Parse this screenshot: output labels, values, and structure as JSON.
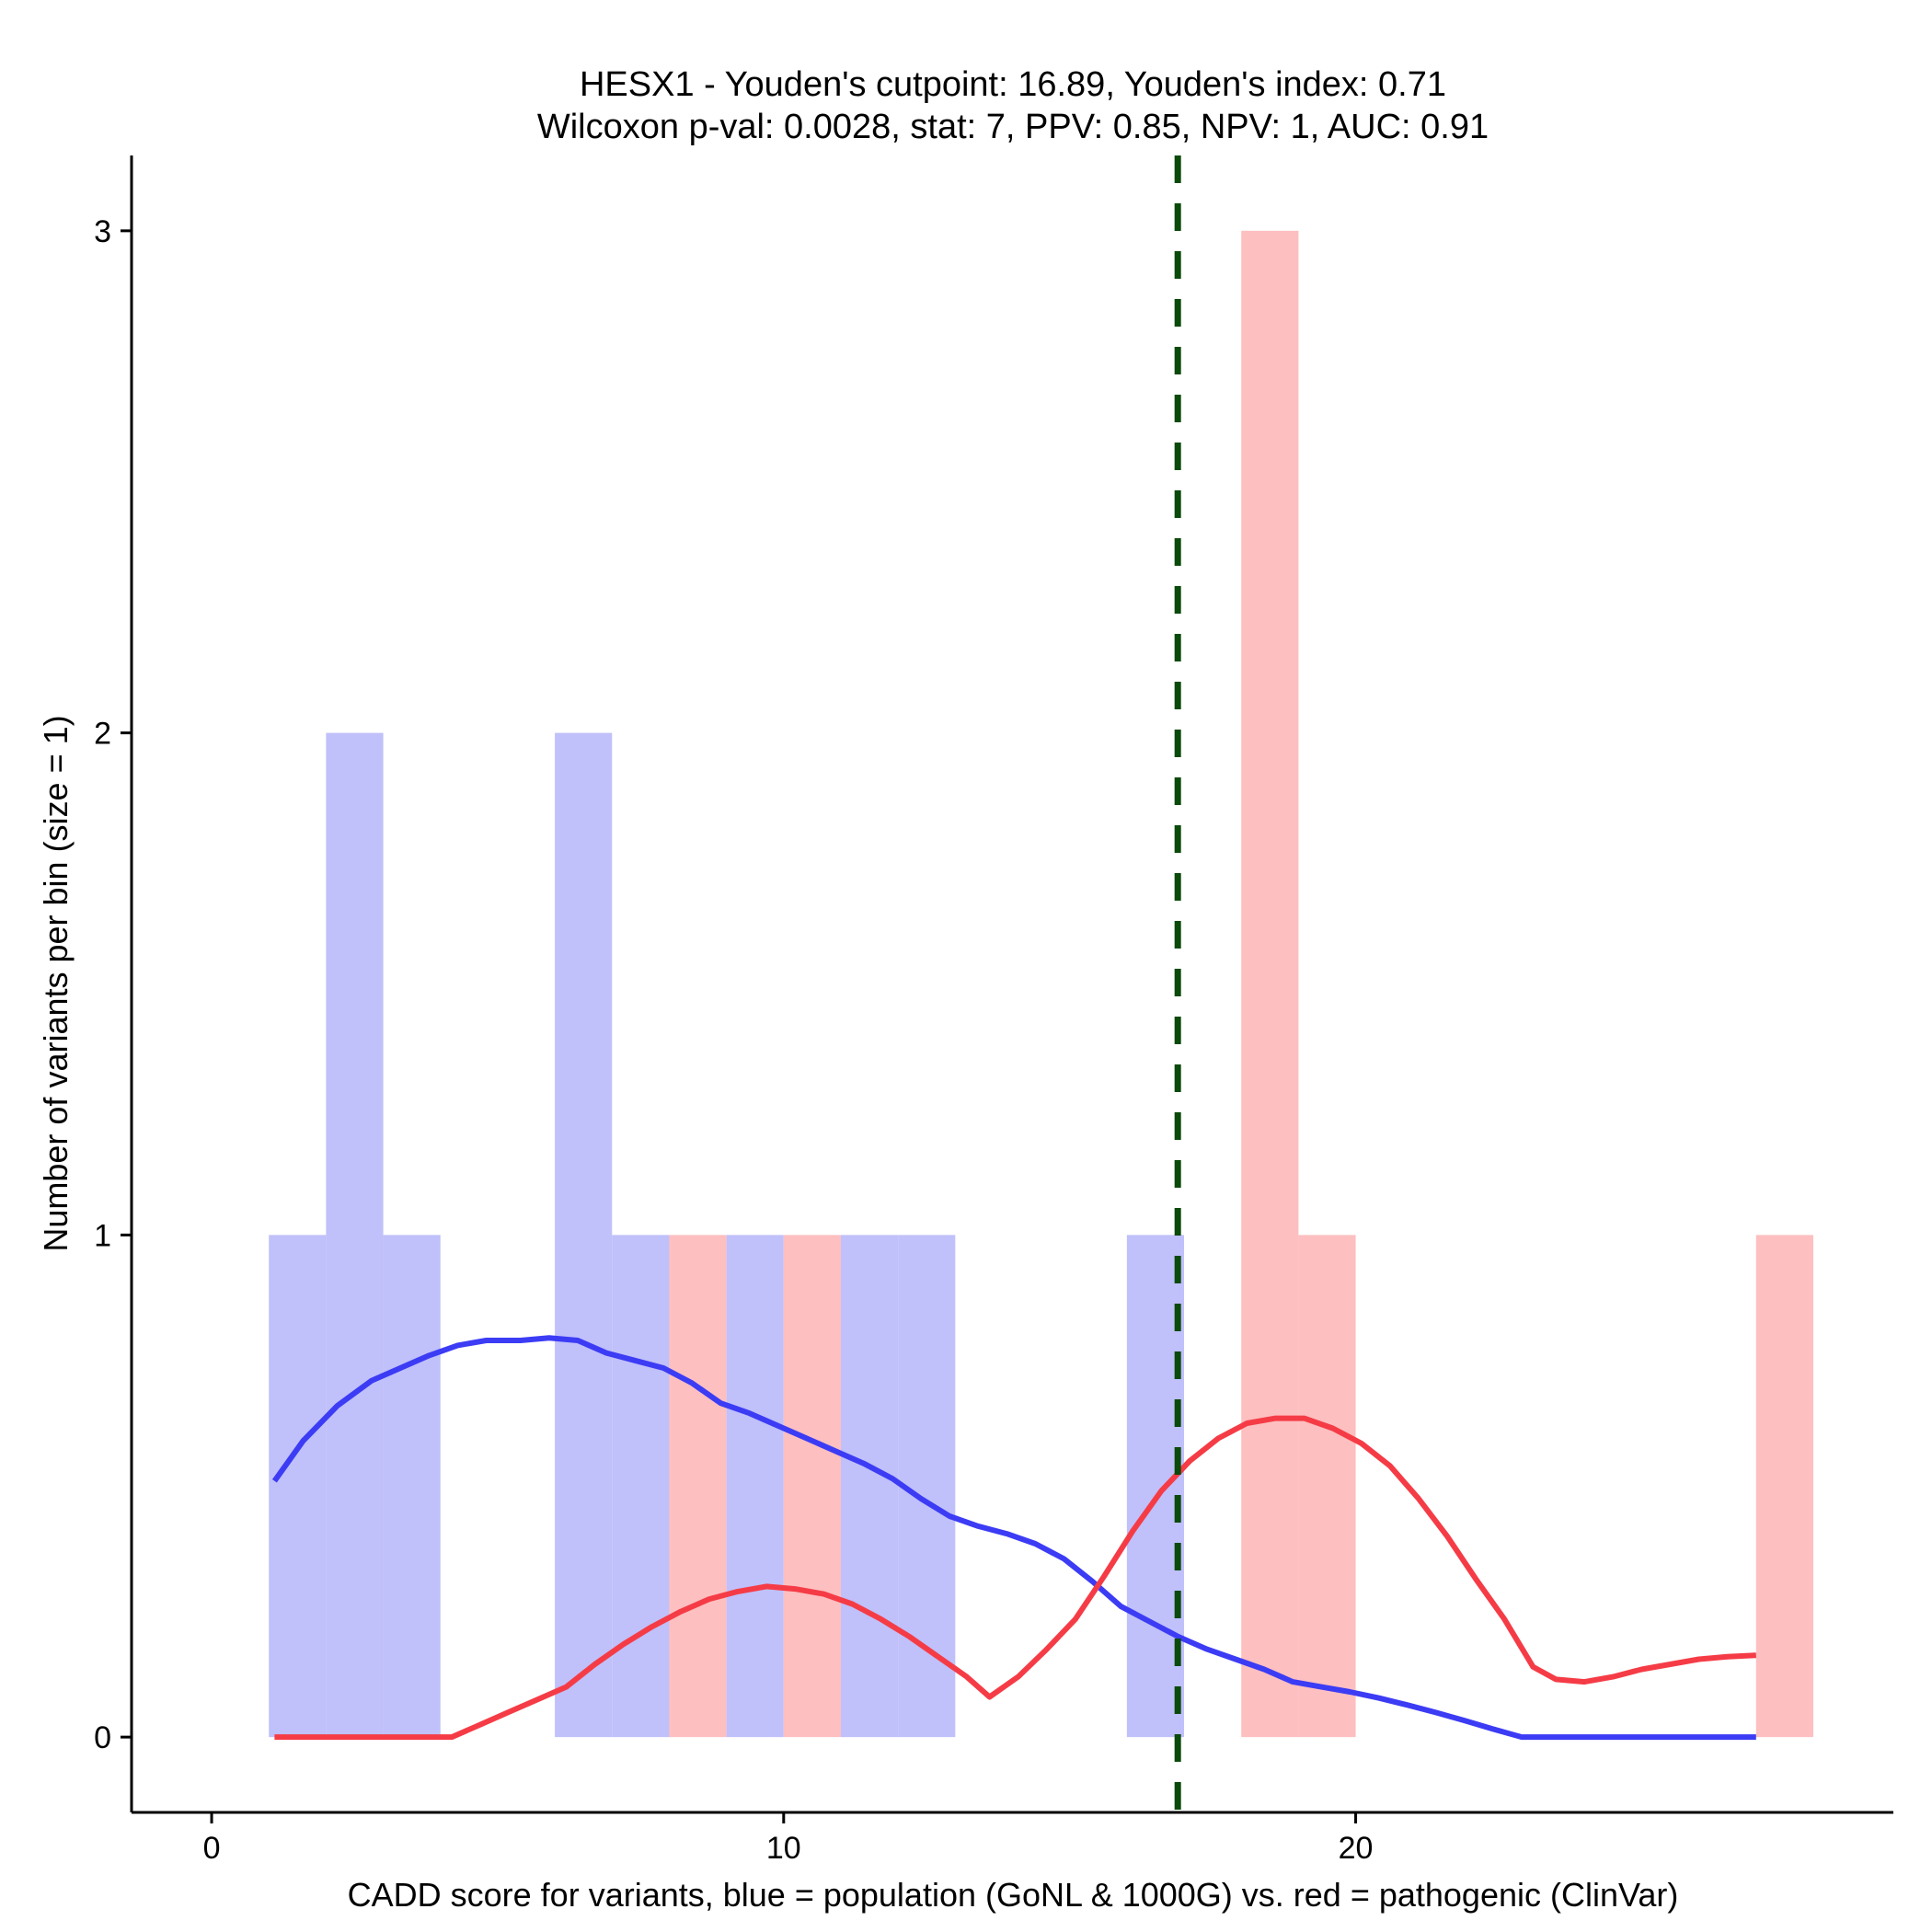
{
  "chart_data": {
    "type": "bar",
    "title_line1": "HESX1 - Youden's cutpoint: 16.89, Youden's index: 0.71",
    "title_line2": "Wilcoxon p-val: 0.0028, stat: 7, PPV: 0.85, NPV: 1, AUC: 0.91",
    "xlabel": "CADD score for variants, blue = population (GoNL & 1000G) vs. red = pathogenic (ClinVar)",
    "ylabel": "Number of variants per bin (size = 1)",
    "xlim": [
      -1.4,
      29.4
    ],
    "ylim": [
      -0.15,
      3.15
    ],
    "x_ticks": [
      0,
      10,
      20
    ],
    "y_ticks": [
      0,
      1,
      2,
      3
    ],
    "cutpoint": 16.89,
    "colors": {
      "population_bar": "#c0c0fa",
      "pathogenic_bar": "#fdbfc0",
      "population_line": "#3c3cf5",
      "pathogenic_line": "#f53c46",
      "cutpoint_line": "#0a4a0a"
    },
    "series": [
      {
        "name": "population",
        "bins": [
          {
            "start": 1,
            "end": 2,
            "count": 1
          },
          {
            "start": 2,
            "end": 3,
            "count": 2
          },
          {
            "start": 3,
            "end": 4,
            "count": 1
          },
          {
            "start": 6,
            "end": 7,
            "count": 2
          },
          {
            "start": 7,
            "end": 8,
            "count": 1
          },
          {
            "start": 9,
            "end": 10,
            "count": 1
          },
          {
            "start": 11,
            "end": 12,
            "count": 1
          },
          {
            "start": 12,
            "end": 13,
            "count": 1
          },
          {
            "start": 16,
            "end": 17,
            "count": 1
          }
        ],
        "density": [
          [
            1.1,
            0.51
          ],
          [
            1.6,
            0.59
          ],
          [
            2.2,
            0.66
          ],
          [
            2.8,
            0.71
          ],
          [
            3.3,
            0.735
          ],
          [
            3.8,
            0.76
          ],
          [
            4.3,
            0.78
          ],
          [
            4.8,
            0.79
          ],
          [
            5.4,
            0.79
          ],
          [
            5.9,
            0.795
          ],
          [
            6.4,
            0.79
          ],
          [
            6.9,
            0.765
          ],
          [
            7.4,
            0.75
          ],
          [
            7.9,
            0.735
          ],
          [
            8.4,
            0.705
          ],
          [
            8.9,
            0.665
          ],
          [
            9.4,
            0.645
          ],
          [
            9.9,
            0.62
          ],
          [
            10.4,
            0.595
          ],
          [
            10.9,
            0.57
          ],
          [
            11.4,
            0.545
          ],
          [
            11.9,
            0.515
          ],
          [
            12.4,
            0.475
          ],
          [
            12.9,
            0.44
          ],
          [
            13.4,
            0.42
          ],
          [
            13.9,
            0.405
          ],
          [
            14.4,
            0.385
          ],
          [
            14.9,
            0.355
          ],
          [
            15.4,
            0.31
          ],
          [
            15.9,
            0.26
          ],
          [
            16.4,
            0.23
          ],
          [
            16.9,
            0.2
          ],
          [
            17.4,
            0.175
          ],
          [
            17.9,
            0.155
          ],
          [
            18.4,
            0.135
          ],
          [
            18.9,
            0.11
          ],
          [
            19.4,
            0.1
          ],
          [
            19.9,
            0.09
          ],
          [
            20.4,
            0.078
          ],
          [
            20.9,
            0.064
          ],
          [
            21.4,
            0.049
          ],
          [
            21.9,
            0.033
          ],
          [
            22.4,
            0.016
          ],
          [
            22.9,
            0.0
          ],
          [
            23.5,
            0.0
          ],
          [
            25,
            0.0
          ],
          [
            27,
            0.0
          ]
        ]
      },
      {
        "name": "pathogenic",
        "bins": [
          {
            "start": 8,
            "end": 9,
            "count": 1
          },
          {
            "start": 10,
            "end": 11,
            "count": 1
          },
          {
            "start": 18,
            "end": 19,
            "count": 3
          },
          {
            "start": 19,
            "end": 20,
            "count": 1
          },
          {
            "start": 27,
            "end": 28,
            "count": 1
          }
        ],
        "density": [
          [
            1.1,
            0.0
          ],
          [
            2.0,
            0.0
          ],
          [
            3.0,
            0.0
          ],
          [
            4.2,
            0.0
          ],
          [
            4.7,
            0.025
          ],
          [
            5.2,
            0.05
          ],
          [
            5.7,
            0.075
          ],
          [
            6.2,
            0.1
          ],
          [
            6.7,
            0.145
          ],
          [
            7.2,
            0.185
          ],
          [
            7.7,
            0.22
          ],
          [
            8.2,
            0.25
          ],
          [
            8.7,
            0.275
          ],
          [
            9.2,
            0.29
          ],
          [
            9.7,
            0.3
          ],
          [
            10.2,
            0.295
          ],
          [
            10.7,
            0.285
          ],
          [
            11.2,
            0.265
          ],
          [
            11.7,
            0.235
          ],
          [
            12.2,
            0.2
          ],
          [
            12.7,
            0.16
          ],
          [
            13.2,
            0.12
          ],
          [
            13.6,
            0.08
          ],
          [
            14.1,
            0.12
          ],
          [
            14.6,
            0.175
          ],
          [
            15.1,
            0.235
          ],
          [
            15.6,
            0.32
          ],
          [
            16.1,
            0.41
          ],
          [
            16.6,
            0.49
          ],
          [
            17.1,
            0.55
          ],
          [
            17.6,
            0.595
          ],
          [
            18.1,
            0.625
          ],
          [
            18.6,
            0.635
          ],
          [
            19.1,
            0.635
          ],
          [
            19.6,
            0.615
          ],
          [
            20.1,
            0.585
          ],
          [
            20.6,
            0.54
          ],
          [
            21.1,
            0.475
          ],
          [
            21.6,
            0.4
          ],
          [
            22.1,
            0.315
          ],
          [
            22.6,
            0.235
          ],
          [
            23.1,
            0.14
          ],
          [
            23.5,
            0.115
          ],
          [
            24.0,
            0.11
          ],
          [
            24.5,
            0.12
          ],
          [
            25.0,
            0.135
          ],
          [
            25.5,
            0.145
          ],
          [
            26.0,
            0.155
          ],
          [
            26.5,
            0.16
          ],
          [
            27.0,
            0.163
          ]
        ]
      }
    ]
  }
}
